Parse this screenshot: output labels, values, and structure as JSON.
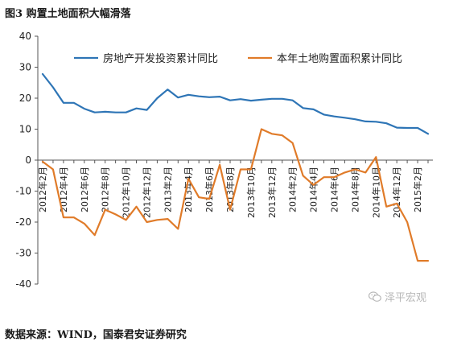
{
  "figure_title": "图3 购置土地面积大幅滑落",
  "source_note": "数据来源：WIND，国泰君安证券研究",
  "watermark": {
    "text": "泽平宏观",
    "icon": "wechat-icon"
  },
  "chart_data": {
    "type": "line",
    "ylim": [
      -40,
      40
    ],
    "yticks": [
      -40,
      -30,
      -20,
      -10,
      0,
      10,
      20,
      30,
      40
    ],
    "grid": false,
    "legend_position": "top",
    "x": [
      "2012年2月",
      "2012年3月",
      "2012年4月",
      "2012年5月",
      "2012年6月",
      "2012年7月",
      "2012年8月",
      "2012年9月",
      "2012年10月",
      "2012年11月",
      "2012年12月",
      "2013年1月",
      "2013年2月",
      "2013年3月",
      "2013年4月",
      "2013年5月",
      "2013年6月",
      "2013年7月",
      "2013年8月",
      "2013年9月",
      "2013年10月",
      "2013年11月",
      "2013年12月",
      "2014年1月",
      "2014年2月",
      "2014年3月",
      "2014年4月",
      "2014年5月",
      "2014年6月",
      "2014年7月",
      "2014年8月",
      "2014年9月",
      "2014年10月",
      "2014年11月",
      "2014年12月",
      "2015年1月",
      "2015年2月",
      "2015年3月"
    ],
    "xtick_labels": [
      "2012年2月",
      "2012年4月",
      "2012年6月",
      "2012年8月",
      "2012年10月",
      "2012年12月",
      "2013年2月",
      "2013年4月",
      "2013年6月",
      "2013年8月",
      "2013年10月",
      "2013年12月",
      "2014年2月",
      "2014年4月",
      "2014年6月",
      "2014年8月",
      "2014年10月",
      "2014年12月",
      "2015年2月"
    ],
    "series": [
      {
        "name": "房地产开发投资累计同比",
        "color": "#2e75b6",
        "values": [
          27.8,
          23.5,
          18.5,
          18.5,
          16.6,
          15.4,
          15.6,
          15.4,
          15.4,
          16.7,
          16.2,
          20.0,
          22.8,
          20.2,
          21.1,
          20.6,
          20.3,
          20.5,
          19.3,
          19.7,
          19.2,
          19.5,
          19.8,
          19.8,
          19.3,
          16.8,
          16.4,
          14.7,
          14.1,
          13.7,
          13.2,
          12.5,
          12.4,
          11.9,
          10.5,
          10.4,
          10.4,
          8.5
        ]
      },
      {
        "name": "本年土地购置面积累计同比",
        "color": "#e07b29",
        "values": [
          -0.5,
          -3.0,
          -18.5,
          -18.5,
          -20.5,
          -24.2,
          -16.0,
          -17.5,
          -19.3,
          -15.0,
          -20.0,
          -19.3,
          -19.0,
          -22.2,
          -6.0,
          -12.0,
          -12.5,
          -1.5,
          -16.0,
          -3.0,
          -3.0,
          10.0,
          8.5,
          8.0,
          5.5,
          -5.0,
          -8.0,
          -5.5,
          -5.5,
          -4.0,
          -3.0,
          -4.0,
          1.0,
          -15.0,
          -14.0,
          -20.0,
          -32.5,
          -32.5
        ]
      }
    ]
  }
}
